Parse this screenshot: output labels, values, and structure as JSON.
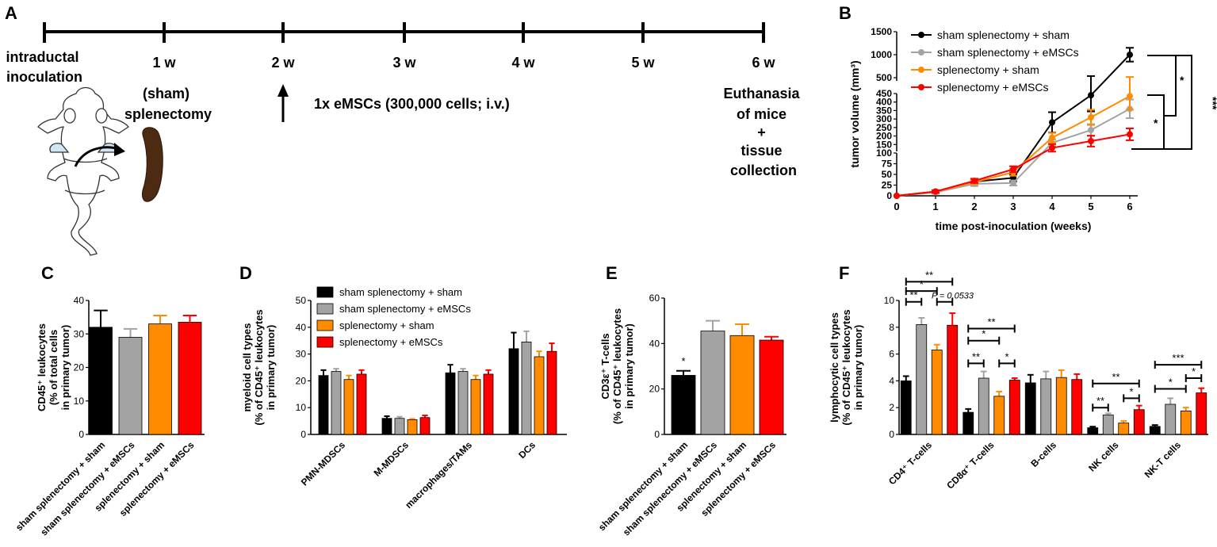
{
  "colors": {
    "sham_sham": "#000000",
    "sham_emscs": "#a3a3a3",
    "splen_sham": "#ff8c00",
    "splen_emscs": "#ff0000",
    "mouse_fill": "#cfe6f5",
    "spleen": "#4d2a12"
  },
  "group_labels": [
    "sham splenectomy + sham",
    "sham splenectomy + eMSCs",
    "splenectomy + sham",
    "splenectomy + eMSCs"
  ],
  "panel_a": {
    "letter": "A",
    "timepoints": [
      "1 w",
      "2 w",
      "3 w",
      "4 w",
      "5 w",
      "6 w"
    ],
    "start_lines": [
      "intraductal",
      "inoculation"
    ],
    "surgery_lines": [
      "(sham)",
      "splenectomy"
    ],
    "injection_label": "1x eMSCs (300,000 cells; i.v.)",
    "end_lines": [
      "Euthanasia",
      "of mice",
      "+",
      "tissue",
      "collection"
    ],
    "icons": [
      "mouse-icon",
      "spleen-icon",
      "arrow-up-icon"
    ]
  },
  "chart_data": [
    {
      "panel": "B",
      "type": "line",
      "title": "",
      "xlabel": "time post-inoculation (weeks)",
      "ylabel": "tumor volume (mm³)",
      "x": [
        0,
        1,
        2,
        3,
        4,
        5,
        6
      ],
      "x_ticks": [
        "0",
        "1",
        "2",
        "3",
        "4",
        "5",
        "6"
      ],
      "y_ticks": [
        "0",
        "25",
        "50",
        "75",
        "100",
        "150",
        "200",
        "250",
        "300",
        "350",
        "400",
        "450",
        "500",
        "1000",
        "1500"
      ],
      "axis_breaks": "y axis segmented: 0-100, 100-450, 500-1500",
      "legend_position": "top-left",
      "series": [
        {
          "name": "sham splenectomy + sham",
          "color_key": "sham_sham",
          "values": [
            0,
            10,
            33,
            42,
            280,
            440,
            1000
          ],
          "errors": [
            0,
            3,
            5,
            8,
            60,
            95,
            150
          ]
        },
        {
          "name": "sham splenectomy + eMSCs",
          "color_key": "sham_emscs",
          "values": [
            0,
            8,
            28,
            30,
            160,
            235,
            360
          ],
          "errors": [
            0,
            3,
            5,
            6,
            20,
            35,
            55
          ]
        },
        {
          "name": "splenectomy + sham",
          "color_key": "splen_sham",
          "values": [
            0,
            10,
            32,
            55,
            190,
            310,
            435
          ],
          "errors": [
            0,
            3,
            5,
            8,
            28,
            45,
            80
          ]
        },
        {
          "name": "splenectomy + eMSCs",
          "color_key": "splen_emscs",
          "values": [
            0,
            10,
            35,
            62,
            130,
            170,
            210
          ],
          "errors": [
            0,
            3,
            5,
            7,
            22,
            32,
            35
          ]
        }
      ],
      "significance": [
        "*",
        "*",
        "***"
      ]
    },
    {
      "panel": "C",
      "type": "bar",
      "ylabel_lines": [
        "CD45⁺ leukocytes",
        "(% of total cells",
        "in primary tumor)"
      ],
      "ylim": [
        0,
        40
      ],
      "y_ticks": [
        "0",
        "10",
        "20",
        "30",
        "40"
      ],
      "categories": [
        "sham splenectomy + sham",
        "sham splenectomy + eMSCs",
        "splenectomy + sham",
        "splenectomy + eMSCs"
      ],
      "values": [
        32,
        29,
        33,
        33.5
      ],
      "errors": [
        5,
        2.5,
        2.5,
        2
      ]
    },
    {
      "panel": "D",
      "type": "bar",
      "ylabel_lines": [
        "myeloid cell types",
        "(% of CD45⁺ leukocytes",
        "in primary tumor)"
      ],
      "ylim": [
        0,
        50
      ],
      "y_ticks": [
        "0",
        "10",
        "20",
        "30",
        "40",
        "50"
      ],
      "categories": [
        "PMN-MDSCs",
        "M-MDSCs",
        "macrophages/TAMs",
        "DCs"
      ],
      "series": [
        {
          "name": "sham splenectomy + sham",
          "values": [
            22,
            6,
            23,
            32
          ],
          "errors": [
            2,
            0.8,
            3,
            6
          ]
        },
        {
          "name": "sham splenectomy + eMSCs",
          "values": [
            23.5,
            6,
            23.5,
            34.5
          ],
          "errors": [
            1,
            0.6,
            1,
            4
          ]
        },
        {
          "name": "splenectomy + sham",
          "values": [
            20.5,
            5.5,
            20.5,
            29
          ],
          "errors": [
            1.5,
            0.3,
            1.5,
            2
          ]
        },
        {
          "name": "splenectomy + eMSCs",
          "values": [
            22.5,
            6.3,
            22.5,
            31
          ],
          "errors": [
            1.5,
            0.8,
            1.5,
            3
          ]
        }
      ],
      "legend_position": "top-left"
    },
    {
      "panel": "E",
      "type": "bar",
      "ylabel_lines": [
        "CD3ε⁺ T-cells",
        "(% of CD45⁺ leukocytes",
        "in primary tumor)"
      ],
      "ylim": [
        0,
        60
      ],
      "y_ticks": [
        "0",
        "20",
        "40",
        "60"
      ],
      "categories": [
        "sham splenectomy + sham",
        "sham splenectomy + eMSCs",
        "splenectomy + sham",
        "splenectomy + eMSCs"
      ],
      "values": [
        26,
        45.5,
        43.5,
        41.5
      ],
      "errors": [
        2,
        4.5,
        5,
        1.5
      ],
      "annotation": "*"
    },
    {
      "panel": "F",
      "type": "bar",
      "ylabel_lines": [
        "lymphocytic cell types",
        "(% of CD45⁺ leukocytes",
        "in primary tumor)"
      ],
      "ylim": [
        0,
        10
      ],
      "y_ticks": [
        "0",
        "2",
        "4",
        "6",
        "8",
        "10"
      ],
      "categories": [
        "CD4⁺ T-cells",
        "CD8α⁺ T-cells",
        "B-cells",
        "NK cells",
        "NK-T cells"
      ],
      "series": [
        {
          "name": "sham splenectomy + sham",
          "values": [
            4,
            1.65,
            3.85,
            0.5,
            0.6
          ],
          "errors": [
            0.35,
            0.25,
            0.6,
            0.08,
            0.1
          ]
        },
        {
          "name": "sham splenectomy + eMSCs",
          "values": [
            8.2,
            4.2,
            4.15,
            1.45,
            2.25
          ],
          "errors": [
            0.5,
            0.5,
            0.55,
            0.12,
            0.45
          ]
        },
        {
          "name": "splenectomy + sham",
          "values": [
            6.3,
            2.85,
            4.25,
            0.85,
            1.75
          ],
          "errors": [
            0.4,
            0.35,
            0.55,
            0.15,
            0.25
          ]
        },
        {
          "name": "splenectomy + eMSCs",
          "values": [
            8.15,
            4.05,
            4.1,
            1.85,
            3.1
          ],
          "errors": [
            0.9,
            0.15,
            0.4,
            0.3,
            0.35
          ]
        }
      ],
      "significance": [
        {
          "cat": 0,
          "from": 0,
          "to": 3,
          "y": 11.4,
          "label": "**"
        },
        {
          "cat": 0,
          "from": 0,
          "to": 2,
          "y": 10.7,
          "label": "*"
        },
        {
          "cat": 0,
          "from": 0,
          "to": 1,
          "y": 9.9,
          "label": "**"
        },
        {
          "cat": 0,
          "from": 2,
          "to": 3,
          "y": 9.9,
          "label": "P = 0.0533"
        },
        {
          "cat": 1,
          "from": 0,
          "to": 3,
          "y": 7.9,
          "label": "**"
        },
        {
          "cat": 1,
          "from": 0,
          "to": 2,
          "y": 7.0,
          "label": "*"
        },
        {
          "cat": 1,
          "from": 0,
          "to": 1,
          "y": 5.3,
          "label": "**"
        },
        {
          "cat": 1,
          "from": 2,
          "to": 3,
          "y": 5.3,
          "label": "*"
        },
        {
          "cat": 3,
          "from": 0,
          "to": 3,
          "y": 3.8,
          "label": "**"
        },
        {
          "cat": 3,
          "from": 0,
          "to": 1,
          "y": 2.0,
          "label": "**"
        },
        {
          "cat": 3,
          "from": 2,
          "to": 3,
          "y": 2.7,
          "label": "*"
        },
        {
          "cat": 4,
          "from": 0,
          "to": 3,
          "y": 5.2,
          "label": "***"
        },
        {
          "cat": 4,
          "from": 0,
          "to": 2,
          "y": 3.4,
          "label": "*"
        },
        {
          "cat": 4,
          "from": 2,
          "to": 3,
          "y": 4.2,
          "label": "*"
        }
      ]
    }
  ]
}
